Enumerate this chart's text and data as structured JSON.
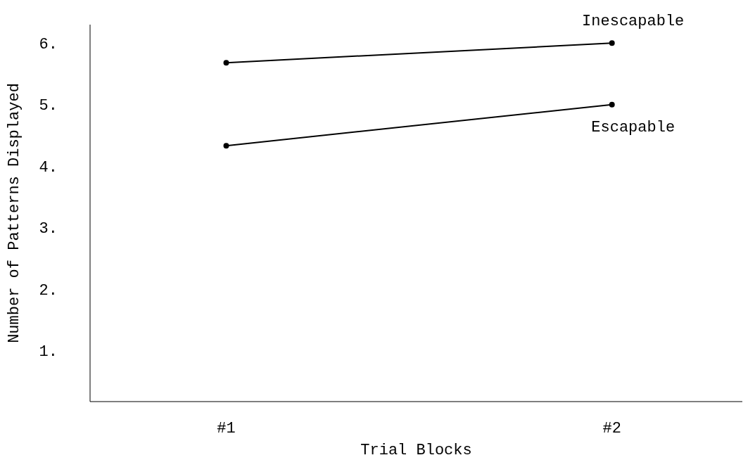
{
  "chart_data": {
    "type": "line",
    "xlabel": "Trial Blocks",
    "ylabel": "Number of Patterns Displayed",
    "categories": [
      "#1",
      "#2"
    ],
    "series": [
      {
        "name": "Inescapable",
        "color": "#000000",
        "values": [
          5.68,
          6.0
        ]
      },
      {
        "name": "Escapable",
        "color": "#000000",
        "values": [
          4.33,
          5.0
        ]
      }
    ],
    "ylim": [
      0.17,
      6.3
    ],
    "yticks": [
      {
        "value": 1,
        "label": "1."
      },
      {
        "value": 2,
        "label": "2."
      },
      {
        "value": 3,
        "label": "3."
      },
      {
        "value": 4,
        "label": "4."
      },
      {
        "value": 5,
        "label": "5."
      },
      {
        "value": 6,
        "label": "6."
      }
    ],
    "grid": false,
    "legend": false,
    "marker": "circle",
    "line_style": "solid"
  }
}
